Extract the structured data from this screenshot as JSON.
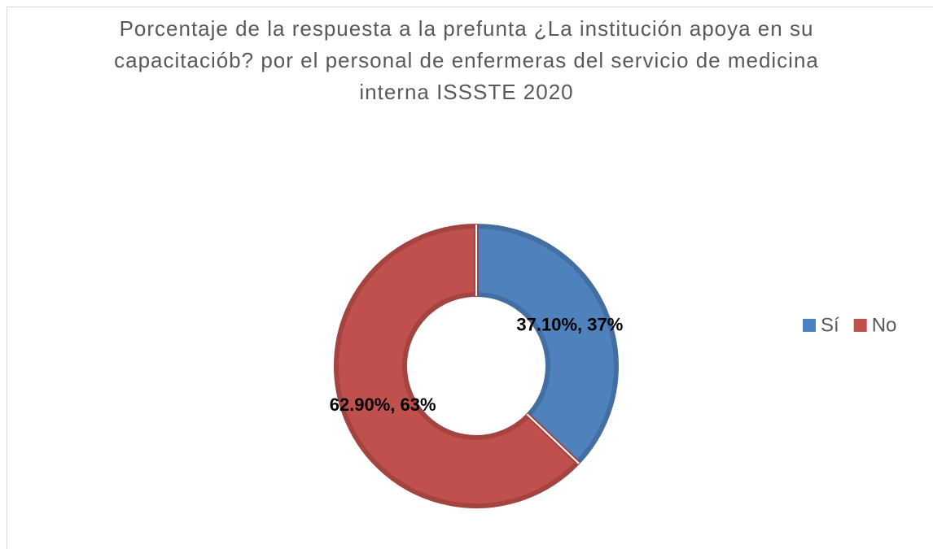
{
  "chart_data": {
    "type": "donut",
    "title": "Porcentaje de la respuesta a la prefunta ¿La institución apoya en su capacitaciób? por el personal de enfermeras del servicio de medicina interna ISSSTE 2020",
    "categories": [
      "Sí",
      "No"
    ],
    "values": [
      37.1,
      62.9
    ],
    "value_labels": [
      "37.10%, 37%",
      "62.90%, 63%"
    ],
    "colors": [
      "#4f81bd",
      "#c0504d"
    ],
    "legend": "right"
  }
}
